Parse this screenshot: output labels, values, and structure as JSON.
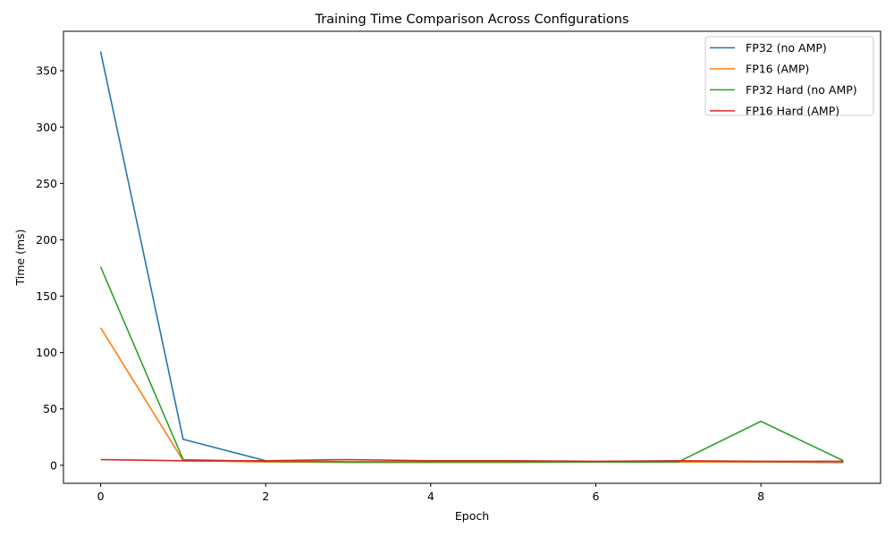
{
  "chart_data": {
    "type": "line",
    "title": "Training Time Comparison Across Configurations",
    "xlabel": "Epoch",
    "ylabel": "Time (ms)",
    "xlim": [
      -0.45,
      9.45
    ],
    "ylim": [
      -16,
      385
    ],
    "xticks": [
      0,
      2,
      4,
      6,
      8
    ],
    "yticks": [
      0,
      50,
      100,
      150,
      200,
      250,
      300,
      350
    ],
    "grid": false,
    "legend_position": "top-right",
    "x": [
      0,
      1,
      2,
      3,
      4,
      5,
      6,
      7,
      8,
      9
    ],
    "series": [
      {
        "name": "FP32 (no AMP)",
        "color": "#1f77b4",
        "values": [
          367,
          23,
          4,
          3,
          3,
          3,
          3,
          3,
          3,
          2.5
        ]
      },
      {
        "name": "FP16 (AMP)",
        "color": "#ff7f0e",
        "values": [
          122,
          4,
          3,
          2.5,
          2.5,
          2.5,
          3,
          3,
          3,
          3
        ]
      },
      {
        "name": "FP32 Hard (no AMP)",
        "color": "#2ca02c",
        "values": [
          176,
          5,
          3.5,
          3,
          3,
          3,
          3,
          3,
          39,
          4
        ]
      },
      {
        "name": "FP16 Hard (AMP)",
        "color": "#d62728",
        "values": [
          5,
          4,
          4,
          5,
          4,
          4,
          3.5,
          4,
          3.5,
          3.5
        ]
      }
    ]
  }
}
